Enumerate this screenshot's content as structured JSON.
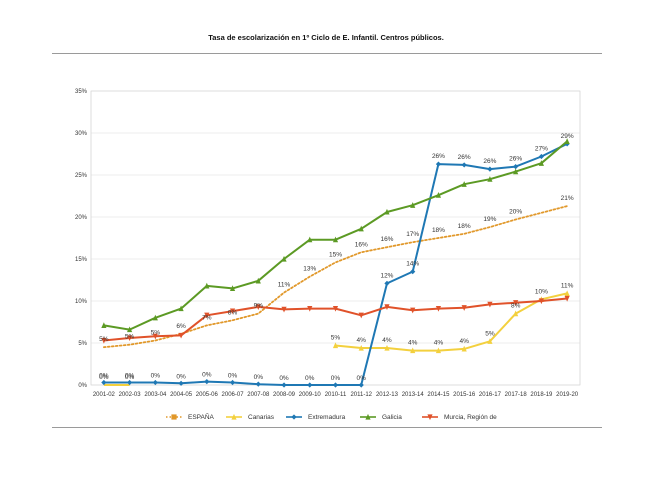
{
  "chart_data": {
    "type": "line",
    "title": "Tasa de escolarización en 1º Ciclo de E. Infantil. Centros públicos.",
    "categories": [
      "2001-02",
      "2002-03",
      "2003-04",
      "2004-05",
      "2005-06",
      "2006-07",
      "2007-08",
      "2008-09",
      "2009-10",
      "2010-11",
      "2011-12",
      "2012-13",
      "2013-14",
      "2014-15",
      "2015-16",
      "2016-17",
      "2017-18",
      "2018-19",
      "2019-20"
    ],
    "y_ticks": [
      "0%",
      "5%",
      "10%",
      "15%",
      "20%",
      "25%",
      "30%",
      "35%"
    ],
    "ylim": [
      0,
      35
    ],
    "grid": true,
    "legend_position": "bottom",
    "series": [
      {
        "name": "ESPAÑA",
        "color": "#e1982a",
        "style": "dotted",
        "marker": "square",
        "values": [
          4.5,
          4.8,
          5.3,
          6.1,
          7.1,
          7.7,
          8.5,
          11.0,
          12.9,
          14.6,
          15.8,
          16.4,
          17.0,
          17.5,
          18.0,
          18.8,
          19.7,
          20.5,
          21.3
        ],
        "labels": [
          "5%",
          "5%",
          "5%",
          "6%",
          "7%",
          "8%",
          "9%",
          "11%",
          "13%",
          "15%",
          "16%",
          "16%",
          "17%",
          "18%",
          "18%",
          "19%",
          "20%",
          "",
          "21%"
        ]
      },
      {
        "name": "Canarias",
        "color": "#f3d03e",
        "style": "solid",
        "marker": "triangle",
        "values": [
          0.0,
          0.0,
          null,
          null,
          null,
          null,
          null,
          null,
          null,
          4.7,
          4.4,
          4.4,
          4.1,
          4.1,
          4.3,
          5.2,
          8.5,
          10.2,
          10.9
        ],
        "labels": [
          "0%",
          "0%",
          "",
          "",
          "",
          "",
          "",
          "",
          "",
          "5%",
          "4%",
          "4%",
          "4%",
          "4%",
          "4%",
          "5%",
          "8%",
          "10%",
          "11%"
        ]
      },
      {
        "name": "Extremadura",
        "color": "#1f78b4",
        "style": "solid",
        "marker": "diamond",
        "values": [
          0.3,
          0.3,
          0.3,
          0.2,
          0.4,
          0.3,
          0.1,
          0.0,
          0.0,
          0.0,
          0.0,
          12.1,
          13.5,
          26.3,
          26.2,
          25.7,
          26.0,
          27.2,
          28.7
        ],
        "labels": [
          "0%",
          "0%",
          "0%",
          "0%",
          "0%",
          "0%",
          "0%",
          "0%",
          "0%",
          "0%",
          "0%",
          "12%",
          "14%",
          "26%",
          "26%",
          "26%",
          "26%",
          "27%",
          "29%"
        ]
      },
      {
        "name": "Galicia",
        "color": "#5c9a24",
        "style": "solid",
        "marker": "triangle",
        "values": [
          7.1,
          6.6,
          8.0,
          9.1,
          11.8,
          11.5,
          12.4,
          15.0,
          17.3,
          17.3,
          18.6,
          20.6,
          21.4,
          22.6,
          23.9,
          24.5,
          25.4,
          26.4,
          29.0
        ],
        "labels": [
          "",
          "",
          "",
          "",
          "",
          "",
          "",
          "",
          "",
          "",
          "",
          "",
          "",
          "",
          "",
          "",
          "",
          "",
          ""
        ]
      },
      {
        "name": "Murcia, Región de",
        "color": "#e0522a",
        "style": "solid",
        "marker": "triangle-down",
        "values": [
          5.3,
          5.6,
          5.8,
          5.9,
          8.3,
          8.8,
          9.3,
          9.0,
          9.1,
          9.1,
          8.3,
          9.3,
          8.9,
          9.1,
          9.2,
          9.6,
          9.8,
          10.0,
          10.3
        ],
        "labels": [
          "",
          "",
          "",
          "",
          "",
          "",
          "",
          "",
          "",
          "",
          "",
          "",
          "",
          "",
          "",
          "",
          "",
          "",
          ""
        ]
      }
    ]
  }
}
